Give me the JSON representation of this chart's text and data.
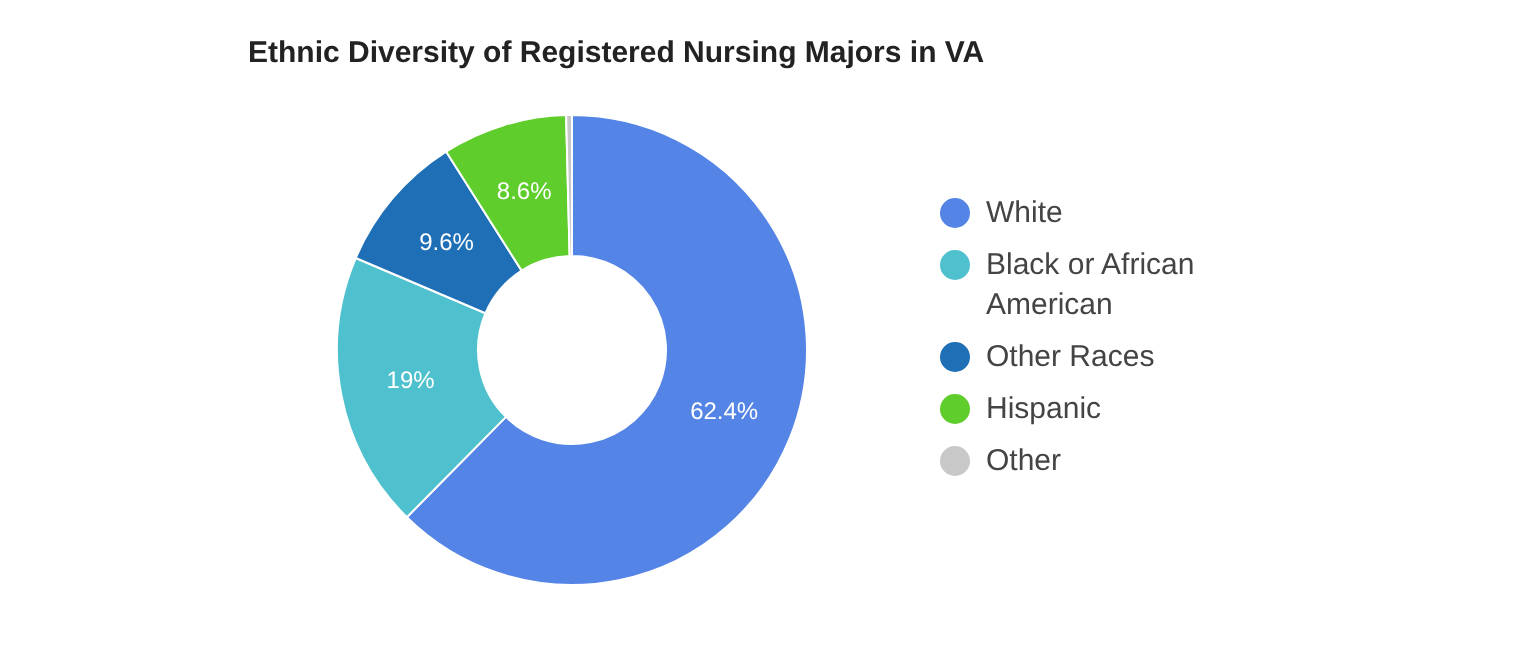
{
  "chart_data": {
    "type": "donut",
    "title": "Ethnic Diversity of Registered Nursing Majors in VA",
    "categories": [
      "White",
      "Black or African American",
      "Other Races",
      "Hispanic",
      "Other"
    ],
    "values": [
      62.4,
      19,
      9.6,
      8.6,
      0.4
    ],
    "colors": [
      "#5484e5",
      "#4fc1ce",
      "#1f6fb7",
      "#5fcd2c",
      "#c8c8c8"
    ],
    "value_labels": [
      "62.4%",
      "19%",
      "9.6%",
      "8.6%",
      null
    ],
    "legend": "right"
  }
}
